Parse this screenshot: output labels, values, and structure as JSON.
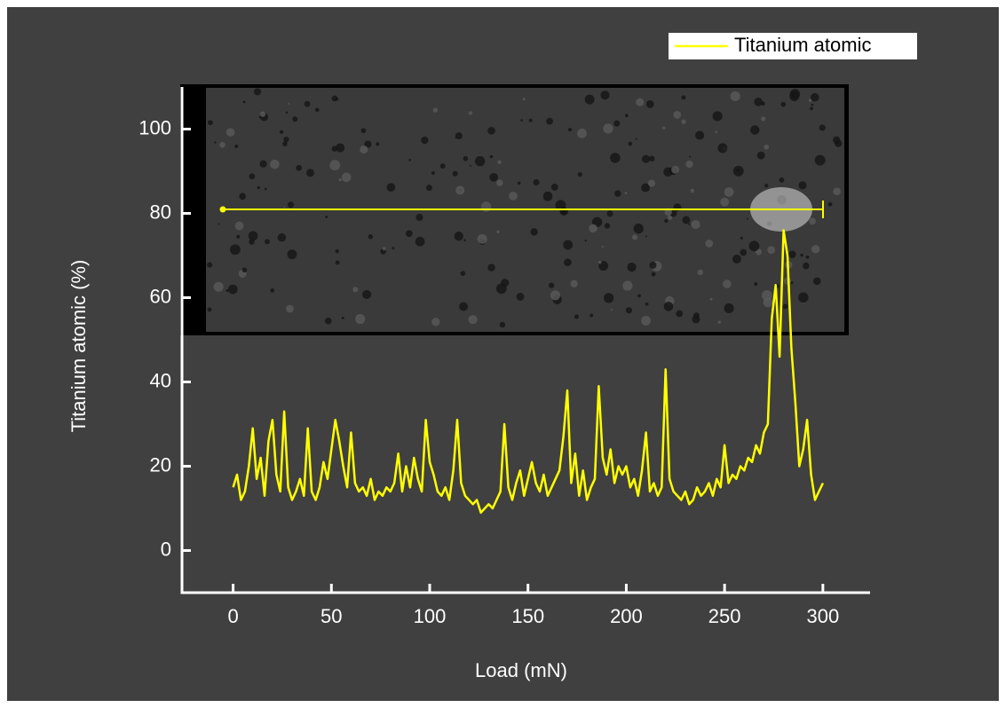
{
  "chart_data": {
    "type": "line",
    "x_label": "Load (mN)",
    "y_label": "Titanium atomic (%)",
    "x": [
      0,
      2,
      4,
      6,
      8,
      10,
      12,
      14,
      16,
      18,
      20,
      22,
      24,
      26,
      28,
      30,
      32,
      34,
      36,
      38,
      40,
      42,
      44,
      46,
      48,
      50,
      52,
      54,
      56,
      58,
      60,
      62,
      64,
      66,
      68,
      70,
      72,
      74,
      76,
      78,
      80,
      82,
      84,
      86,
      88,
      90,
      92,
      94,
      96,
      98,
      100,
      102,
      104,
      106,
      108,
      110,
      112,
      114,
      116,
      118,
      120,
      122,
      124,
      126,
      128,
      130,
      132,
      134,
      136,
      138,
      140,
      142,
      144,
      146,
      148,
      150,
      152,
      154,
      156,
      158,
      160,
      162,
      164,
      166,
      168,
      170,
      172,
      174,
      176,
      178,
      180,
      182,
      184,
      186,
      188,
      190,
      192,
      194,
      196,
      198,
      200,
      202,
      204,
      206,
      208,
      210,
      212,
      214,
      216,
      218,
      220,
      222,
      224,
      226,
      228,
      230,
      232,
      234,
      236,
      238,
      240,
      242,
      244,
      246,
      248,
      250,
      252,
      254,
      256,
      258,
      260,
      262,
      264,
      266,
      268,
      270,
      272,
      274,
      276,
      278,
      280,
      282,
      284,
      286,
      288,
      290,
      292,
      294,
      296,
      298,
      300
    ],
    "series": [
      {
        "name": "Titanium atomic",
        "color": "#ffff00",
        "values": [
          15,
          18,
          12,
          14,
          20,
          29,
          17,
          22,
          13,
          26,
          31,
          18,
          14,
          33,
          15,
          12,
          14,
          17,
          13,
          29,
          14,
          12,
          15,
          21,
          17,
          24,
          31,
          26,
          20,
          15,
          28,
          16,
          14,
          15,
          13,
          17,
          12,
          14,
          13,
          15,
          14,
          16,
          23,
          14,
          20,
          15,
          22,
          17,
          14,
          31,
          21,
          18,
          14,
          13,
          15,
          12,
          19,
          31,
          16,
          13,
          12,
          11,
          12,
          9,
          10,
          11,
          10,
          12,
          14,
          30,
          15,
          12,
          16,
          19,
          13,
          17,
          21,
          16,
          14,
          18,
          13,
          15,
          17,
          19,
          27,
          38,
          16,
          23,
          13,
          19,
          12,
          15,
          17,
          39,
          22,
          18,
          24,
          16,
          20,
          18,
          20,
          15,
          17,
          13,
          19,
          28,
          14,
          16,
          13,
          15,
          43,
          17,
          14,
          13,
          12,
          14,
          11,
          12,
          15,
          13,
          14,
          16,
          13,
          17,
          15,
          25,
          16,
          18,
          17,
          20,
          19,
          22,
          21,
          25,
          23,
          28,
          30,
          55,
          63,
          46,
          76,
          70,
          48,
          35,
          20,
          24,
          31,
          18,
          12,
          14,
          16
        ]
      }
    ],
    "xlim": [
      -26,
      324
    ],
    "ylim": [
      -10,
      110
    ],
    "xticks": [
      0,
      50,
      100,
      150,
      200,
      250,
      300
    ],
    "yticks": [
      0,
      20,
      40,
      60,
      80,
      100
    ],
    "legend": "top-right"
  }
}
